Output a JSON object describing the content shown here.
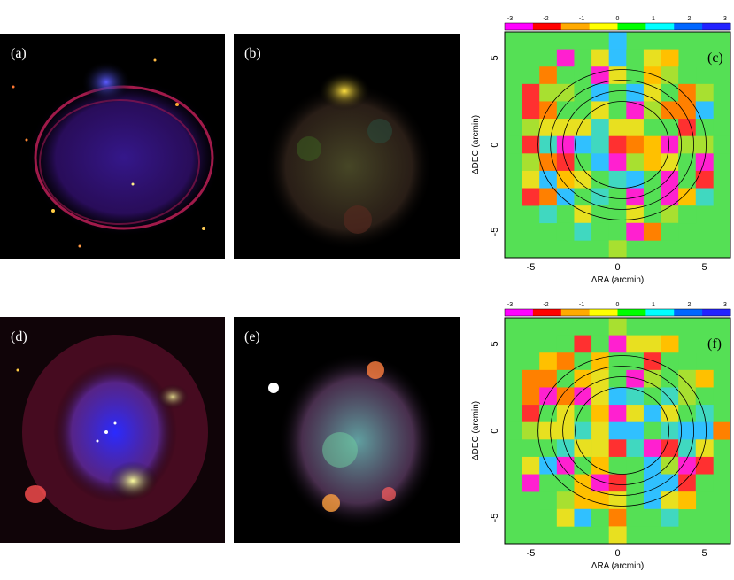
{
  "panels": {
    "a": {
      "label": "(a)"
    },
    "b": {
      "label": "(b)"
    },
    "c": {
      "label": "(c)"
    },
    "d": {
      "label": "(d)"
    },
    "e": {
      "label": "(e)"
    },
    "f": {
      "label": "(f)"
    }
  },
  "colorbar": {
    "ticks": [
      "-3",
      "-2",
      "-1",
      "0",
      "1",
      "2",
      "3"
    ],
    "colors": [
      "#ff00ff",
      "#ff0000",
      "#ffaa00",
      "#ffff00",
      "#00ff00",
      "#00ffff",
      "#0066ff",
      "#2222ff"
    ]
  },
  "axes": {
    "xlabel": "ΔRA (arcmin)",
    "ylabel": "ΔDEC (arcmin)",
    "xticks": [
      "-5",
      "0",
      "5"
    ],
    "yticks": [
      "5",
      "0",
      "-5"
    ]
  },
  "chart_data": [
    {
      "type": "heatmap",
      "panel": "c",
      "xlabel": "ΔRA (arcmin)",
      "ylabel": "ΔDEC (arcmin)",
      "xlim": [
        -6.5,
        6.5
      ],
      "ylim": [
        -6.5,
        6.5
      ],
      "colorbar_range": [
        -3,
        3
      ]
    },
    {
      "type": "heatmap",
      "panel": "f",
      "xlabel": "ΔRA (arcmin)",
      "ylabel": "ΔDEC (arcmin)",
      "xlim": [
        -6.5,
        6.5
      ],
      "ylim": [
        -6.5,
        6.5
      ],
      "colorbar_range": [
        -3,
        3
      ]
    }
  ]
}
